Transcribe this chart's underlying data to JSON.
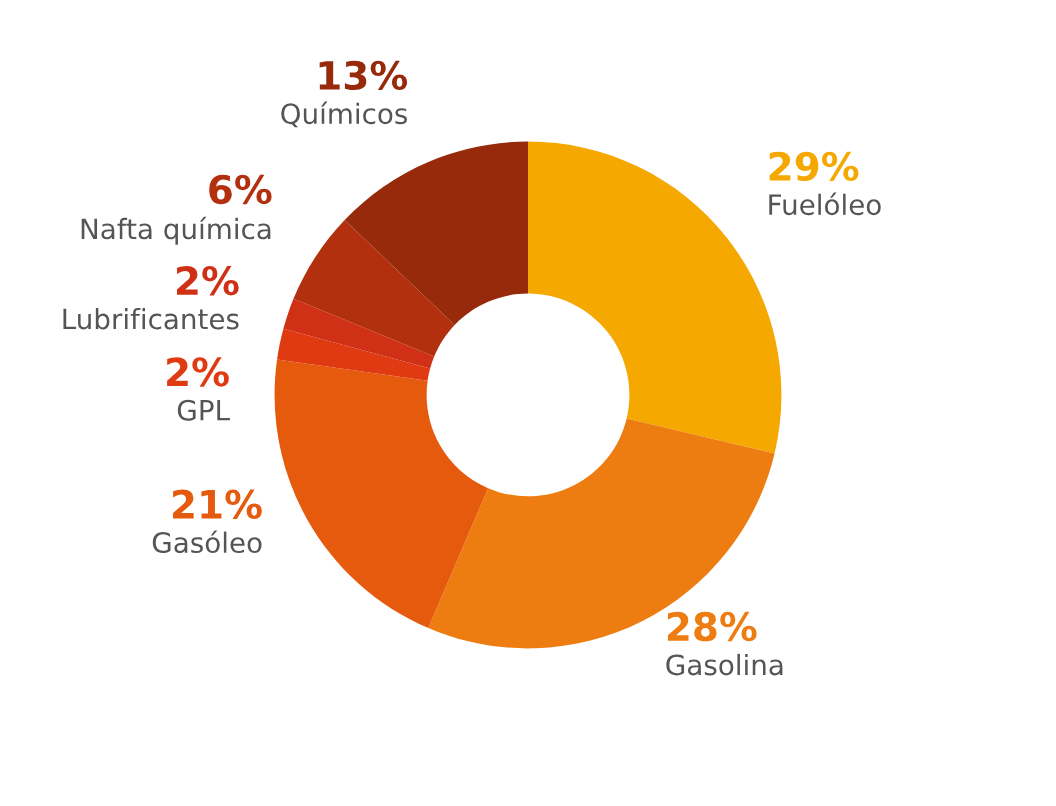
{
  "chart_data": {
    "type": "donut",
    "categories": [
      "Fuelóleo",
      "Gasolina",
      "Gasóleo",
      "GPL",
      "Lubrificantes",
      "Nafta química",
      "Químicos"
    ],
    "values": [
      29,
      28,
      21,
      2,
      2,
      6,
      13
    ],
    "value_labels": [
      "29%",
      "28%",
      "21%",
      "2%",
      "2%",
      "6%",
      "13%"
    ],
    "colors": [
      "#f5a800",
      "#ee7d11",
      "#e65a0e",
      "#e03a12",
      "#cf3016",
      "#b3300f",
      "#962a0a"
    ]
  }
}
